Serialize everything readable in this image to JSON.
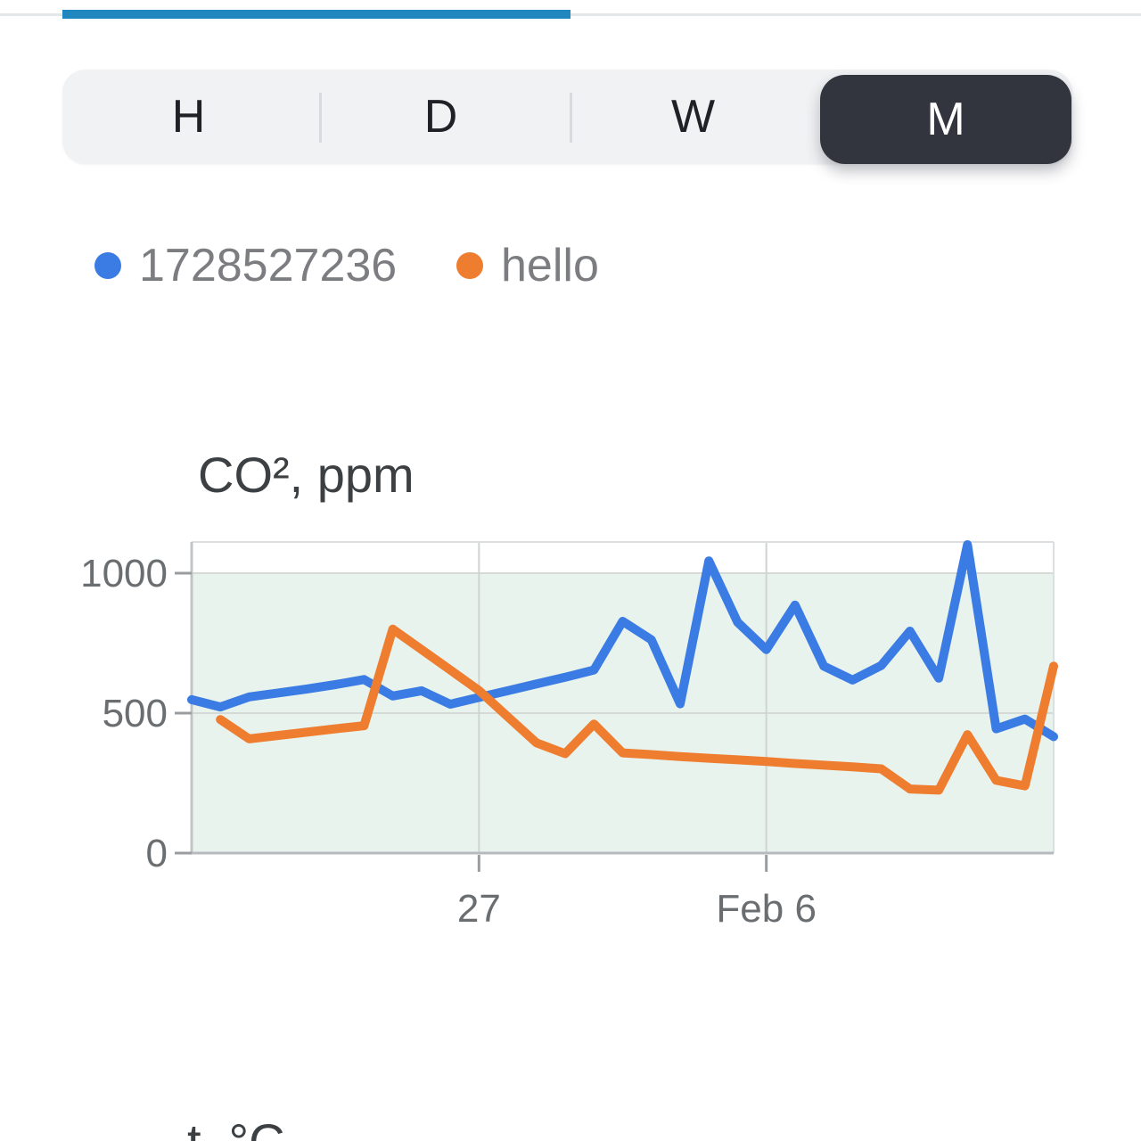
{
  "colors": {
    "progress_blue": "#2187bf",
    "selected_tab_bg": "#32353e",
    "series_blue": "#3a7ce4",
    "series_orange": "#ee7d2f",
    "band_green": "#e9f3ee"
  },
  "tabs": {
    "items": [
      {
        "label": "H",
        "selected": false
      },
      {
        "label": "D",
        "selected": false
      },
      {
        "label": "W",
        "selected": false
      },
      {
        "label": "M",
        "selected": true
      }
    ]
  },
  "legend": {
    "items": [
      {
        "label": "1728527236",
        "color": "#3a7ce4"
      },
      {
        "label": "hello",
        "color": "#ee7d2f"
      }
    ]
  },
  "chart_data": {
    "type": "line",
    "title": "CO², ppm",
    "xlabel": "",
    "ylabel": "",
    "ylim": [
      0,
      1114
    ],
    "yticks": [
      0,
      500,
      1000
    ],
    "ytick_labels": [
      "0",
      "500",
      "1000"
    ],
    "grid": true,
    "legend_position": "top",
    "band": {
      "from": 0,
      "to": 1000,
      "color": "#e9f3ee"
    },
    "x_count": 31,
    "x_gridline_ticks": [
      {
        "index": 10,
        "label": "27"
      },
      {
        "index": 20,
        "label": "Feb 6"
      }
    ],
    "series": [
      {
        "name": "1728527236",
        "color": "#3a7ce4",
        "values": [
          548,
          522,
          558,
          572,
          586,
          602,
          620,
          561,
          580,
          532,
          556,
          580,
          604,
          628,
          654,
          828,
          762,
          533,
          1044,
          825,
          727,
          886,
          668,
          618,
          670,
          793,
          625,
          1102,
          444,
          479,
          416
        ]
      },
      {
        "name": "hello",
        "color": "#ee7d2f",
        "values": [
          null,
          477,
          408,
          420,
          432,
          444,
          455,
          800,
          727,
          654,
          581,
          487,
          394,
          355,
          461,
          358,
          352,
          345,
          339,
          333,
          327,
          320,
          314,
          308,
          301,
          229,
          225,
          423,
          260,
          240,
          668
        ]
      }
    ]
  },
  "next_chart": {
    "title": "t, °C"
  }
}
